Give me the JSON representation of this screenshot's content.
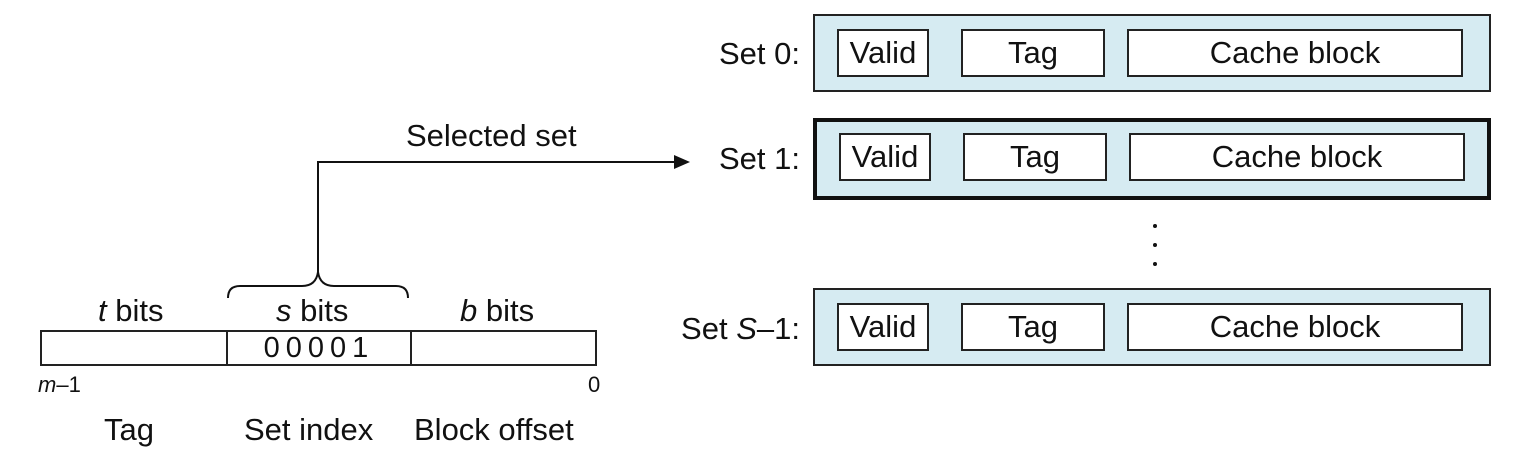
{
  "sets": [
    {
      "label": "Set 0:",
      "valid": "Valid",
      "tag": "Tag",
      "block": "Cache block"
    },
    {
      "label": "Set 1:",
      "valid": "Valid",
      "tag": "Tag",
      "block": "Cache block"
    },
    {
      "label_prefix": "Set ",
      "label_var": "S",
      "label_suffix": "–1:",
      "valid": "Valid",
      "tag": "Tag",
      "block": "Cache block"
    }
  ],
  "selected_set_label": "Selected set",
  "address": {
    "fields": [
      {
        "width_var": "t",
        "width_suffix": " bits",
        "name": "Tag",
        "value": ""
      },
      {
        "width_var": "s",
        "width_suffix": " bits",
        "name": "Set index",
        "value": "00001"
      },
      {
        "width_var": "b",
        "width_suffix": " bits",
        "name": "Block offset",
        "value": ""
      }
    ],
    "high_bit_var": "m",
    "high_bit_suffix": "–1",
    "low_bit": "0"
  },
  "colors": {
    "set_fill": "#d6ebf2",
    "line": "#111111"
  }
}
